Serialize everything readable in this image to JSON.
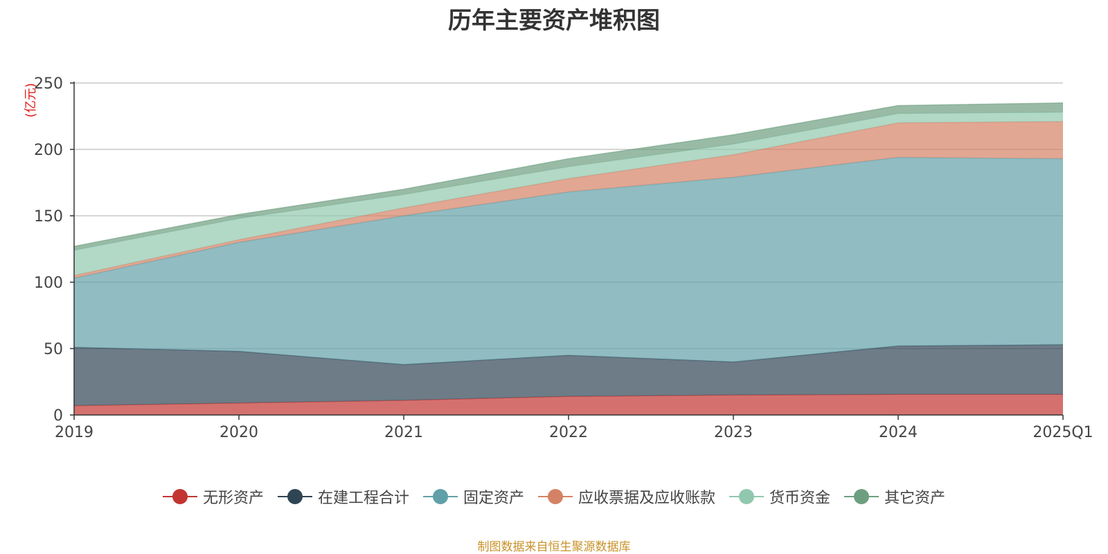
{
  "chart_data": {
    "type": "area",
    "stacked": true,
    "title": "历年主要资产堆积图",
    "ylabel": "(亿元)",
    "categories": [
      "2019",
      "2020",
      "2021",
      "2022",
      "2023",
      "2024",
      "2025Q1"
    ],
    "ylim": [
      0,
      250
    ],
    "yticks": [
      0,
      50,
      100,
      150,
      200,
      250
    ],
    "grid": true,
    "legend_position": "bottom",
    "series": [
      {
        "name": "无形资产",
        "color": "#c23531",
        "values": [
          7,
          9,
          11,
          14,
          15,
          15.5,
          15.5
        ]
      },
      {
        "name": "在建工程合计",
        "color": "#2f4554",
        "values": [
          44,
          39,
          27,
          31,
          25,
          36.5,
          37.5
        ]
      },
      {
        "name": "固定资产",
        "color": "#61a0a8",
        "values": [
          52,
          82,
          112,
          123,
          139,
          142,
          140
        ]
      },
      {
        "name": "应收票据及应收账款",
        "color": "#d48265",
        "values": [
          2,
          2,
          6,
          10,
          17,
          26,
          28
        ]
      },
      {
        "name": "货币资金",
        "color": "#91c7ae",
        "values": [
          19,
          16,
          10,
          9,
          8,
          7,
          7
        ]
      },
      {
        "name": "其它资产",
        "color": "#6e9e80",
        "values": [
          3,
          3,
          4,
          6,
          7,
          6,
          7
        ]
      }
    ]
  },
  "source_note": "制图数据来自恒生聚源数据库"
}
